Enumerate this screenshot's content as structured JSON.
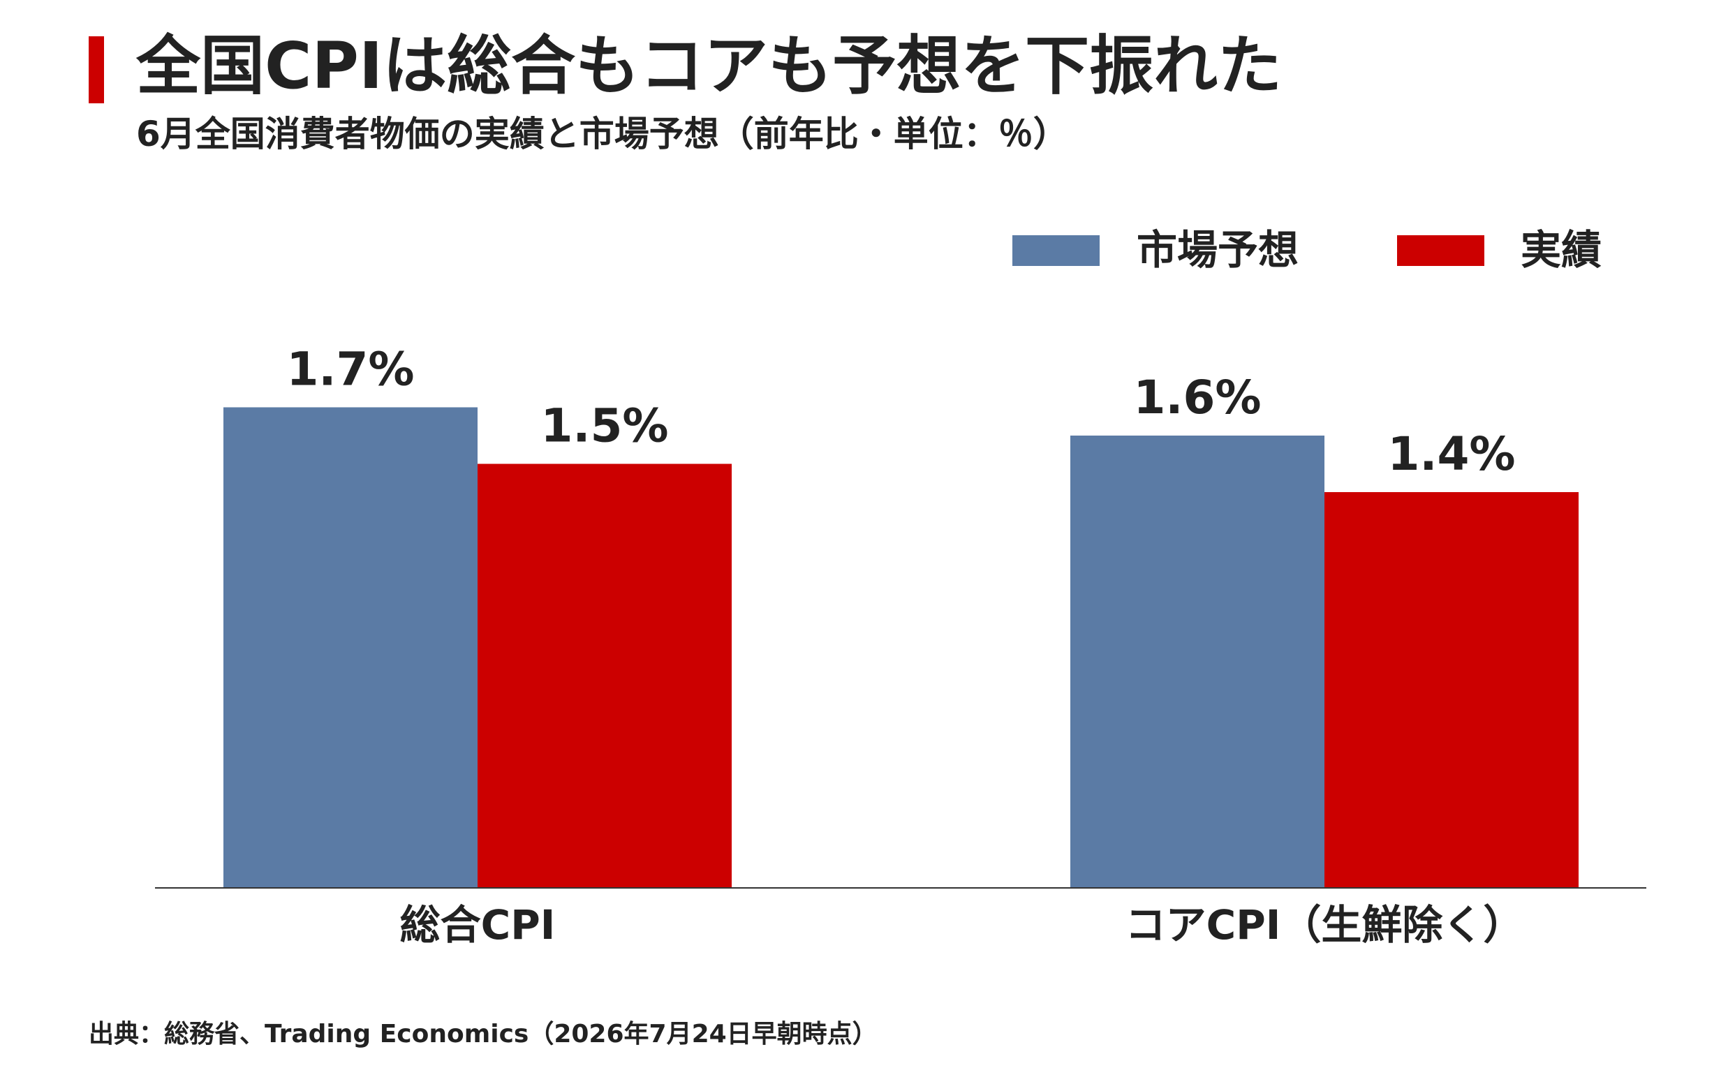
{
  "header": {
    "title": "全国CPIは総合もコアも予想を下振れた",
    "subtitle": "6月全国消費者物価の実績と市場予想（前年比・単位：％）"
  },
  "footer": {
    "source": "出典：総務省、Trading Economics（2026年7月24日早朝時点）"
  },
  "chart_data": {
    "type": "bar",
    "categories": [
      "総合CPI",
      "コアCPI（生鮮除く）"
    ],
    "series": [
      {
        "name": "市場予想",
        "values": [
          1.7,
          1.6
        ],
        "color": "#5b7ba5"
      },
      {
        "name": "実績",
        "values": [
          1.5,
          1.4
        ],
        "color": "#cc0000"
      }
    ],
    "value_labels": [
      [
        "1.7%",
        "1.6%"
      ],
      [
        "1.5%",
        "1.4%"
      ]
    ],
    "ylim": [
      0,
      2.0
    ],
    "grid": false,
    "y_axis_shown": false,
    "legend_position": "top-right"
  }
}
